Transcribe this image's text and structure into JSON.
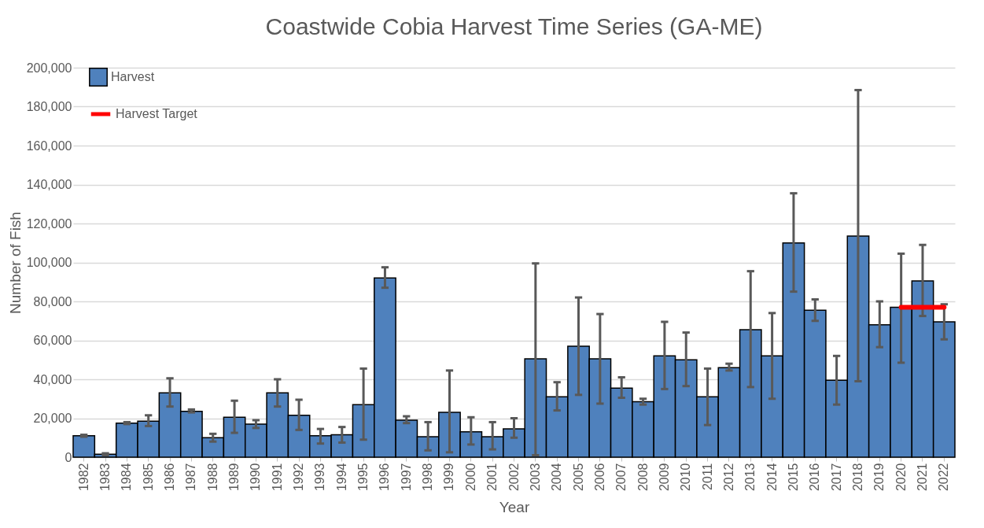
{
  "chart_data": {
    "type": "bar",
    "title": "Coastwide Cobia Harvest Time Series (GA-ME)",
    "xlabel": "Year",
    "ylabel": "Number of Fish",
    "categories": [
      "1982",
      "1983",
      "1984",
      "1985",
      "1986",
      "1987",
      "1988",
      "1989",
      "1990",
      "1991",
      "1992",
      "1993",
      "1994",
      "1995",
      "1996",
      "1997",
      "1998",
      "1999",
      "2000",
      "2001",
      "2002",
      "2003",
      "2004",
      "2005",
      "2006",
      "2007",
      "2008",
      "2009",
      "2010",
      "2011",
      "2012",
      "2013",
      "2014",
      "2015",
      "2016",
      "2017",
      "2018",
      "2019",
      "2020",
      "2021",
      "2022"
    ],
    "series": [
      {
        "name": "Harvest",
        "color": "#4f81bd",
        "values": [
          11000,
          1500,
          17500,
          18500,
          33000,
          23500,
          10000,
          20500,
          17000,
          33000,
          21500,
          11000,
          11500,
          27000,
          92000,
          19000,
          10500,
          23000,
          13000,
          10500,
          14500,
          50500,
          31000,
          57000,
          50500,
          35500,
          28500,
          52000,
          50000,
          31000,
          46000,
          65500,
          52000,
          110000,
          75500,
          39500,
          113500,
          68000,
          77000,
          90500,
          69500
        ],
        "errors": [
          [
            10500,
            11500
          ],
          [
            1000,
            2000
          ],
          [
            17000,
            18000
          ],
          [
            16000,
            21500
          ],
          [
            26000,
            40500
          ],
          [
            23000,
            24500
          ],
          [
            8000,
            12000
          ],
          [
            12500,
            29000
          ],
          [
            15000,
            19000
          ],
          [
            26000,
            40000
          ],
          [
            14000,
            29500
          ],
          [
            7000,
            14500
          ],
          [
            7500,
            15500
          ],
          [
            9000,
            45500
          ],
          [
            87000,
            97500
          ],
          [
            17500,
            21000
          ],
          [
            3500,
            18000
          ],
          [
            2500,
            44500
          ],
          [
            6500,
            20500
          ],
          [
            4000,
            18000
          ],
          [
            10000,
            20000
          ],
          [
            1000,
            99500
          ],
          [
            24000,
            38500
          ],
          [
            32000,
            82000
          ],
          [
            27500,
            73500
          ],
          [
            30500,
            41000
          ],
          [
            27000,
            30000
          ],
          [
            35000,
            69500
          ],
          [
            36500,
            64000
          ],
          [
            16500,
            45500
          ],
          [
            44500,
            48000
          ],
          [
            36000,
            95500
          ],
          [
            30000,
            74000
          ],
          [
            85000,
            135500
          ],
          [
            70000,
            81000
          ],
          [
            27000,
            52000
          ],
          [
            39000,
            188500
          ],
          [
            56500,
            80000
          ],
          [
            48500,
            104500
          ],
          [
            72500,
            109000
          ],
          [
            60500,
            78500
          ]
        ]
      },
      {
        "name": "Harvest Target",
        "type": "line",
        "color": "#ff0000",
        "values": [
          null,
          null,
          null,
          null,
          null,
          null,
          null,
          null,
          null,
          null,
          null,
          null,
          null,
          null,
          null,
          null,
          null,
          null,
          null,
          null,
          null,
          null,
          null,
          null,
          null,
          null,
          null,
          null,
          null,
          null,
          null,
          null,
          null,
          null,
          null,
          null,
          null,
          null,
          77000,
          77000,
          77000
        ]
      }
    ],
    "ylim": [
      0,
      200000
    ],
    "yticks": [
      {
        "value": 0,
        "label": "0"
      },
      {
        "value": 20000,
        "label": "20,000"
      },
      {
        "value": 40000,
        "label": "40,000"
      },
      {
        "value": 60000,
        "label": "60,000"
      },
      {
        "value": 80000,
        "label": "80,000"
      },
      {
        "value": 100000,
        "label": "100,000"
      },
      {
        "value": 120000,
        "label": "120,000"
      },
      {
        "value": 140000,
        "label": "140,000"
      },
      {
        "value": 160000,
        "label": "160,000"
      },
      {
        "value": 180000,
        "label": "180,000"
      },
      {
        "value": 200000,
        "label": "200,000"
      }
    ],
    "grid": "y",
    "legend": "top left"
  }
}
